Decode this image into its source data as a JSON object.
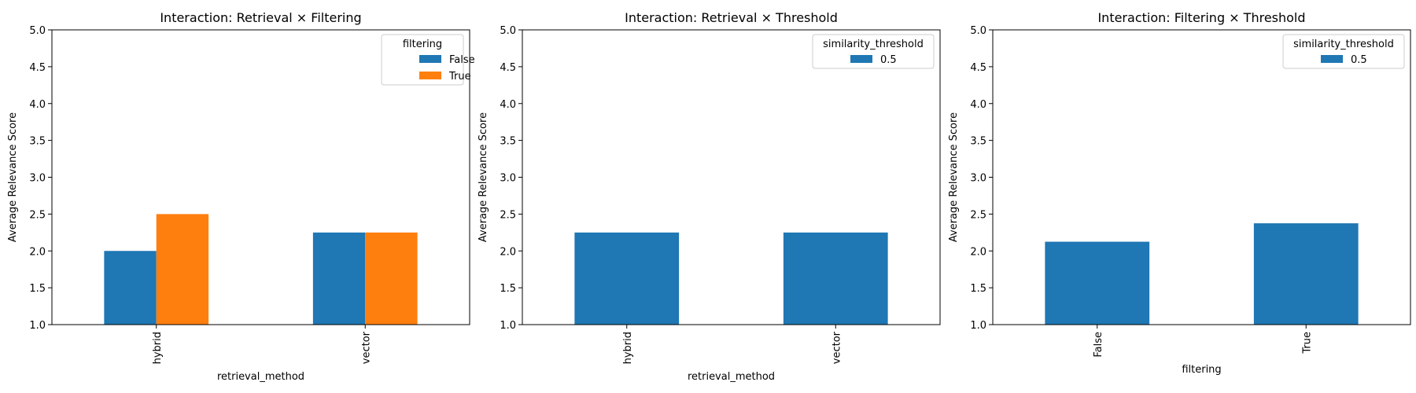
{
  "colors": {
    "series_blue": "#1f77b4",
    "series_orange": "#ff7f0e",
    "axis": "#000000",
    "legend_border": "#cccccc"
  },
  "chart_data": [
    {
      "type": "bar",
      "title": "Interaction: Retrieval × Filtering",
      "xlabel": "retrieval_method",
      "ylabel": "Average Relevance Score",
      "categories": [
        "hybrid",
        "vector"
      ],
      "series": [
        {
          "name": "False",
          "values": [
            2.0,
            2.25
          ],
          "color": "#1f77b4"
        },
        {
          "name": "True",
          "values": [
            2.5,
            2.25
          ],
          "color": "#ff7f0e"
        }
      ],
      "ylim": [
        1.0,
        5.0
      ],
      "yticks": [
        "1.0",
        "1.5",
        "2.0",
        "2.5",
        "3.0",
        "3.5",
        "4.0",
        "4.5",
        "5.0"
      ],
      "legend_title": "filtering",
      "legend_position": "top-right",
      "grid": false
    },
    {
      "type": "bar",
      "title": "Interaction: Retrieval × Threshold",
      "xlabel": "retrieval_method",
      "ylabel": "Average Relevance Score",
      "categories": [
        "hybrid",
        "vector"
      ],
      "series": [
        {
          "name": "0.5",
          "values": [
            2.25,
            2.25
          ],
          "color": "#1f77b4"
        }
      ],
      "ylim": [
        1.0,
        5.0
      ],
      "yticks": [
        "1.0",
        "1.5",
        "2.0",
        "2.5",
        "3.0",
        "3.5",
        "4.0",
        "4.5",
        "5.0"
      ],
      "legend_title": "similarity_threshold",
      "legend_position": "top-right",
      "grid": false
    },
    {
      "type": "bar",
      "title": "Interaction: Filtering × Threshold",
      "xlabel": "filtering",
      "ylabel": "Average Relevance Score",
      "categories": [
        "False",
        "True"
      ],
      "series": [
        {
          "name": "0.5",
          "values": [
            2.125,
            2.375
          ],
          "color": "#1f77b4"
        }
      ],
      "ylim": [
        1.0,
        5.0
      ],
      "yticks": [
        "1.0",
        "1.5",
        "2.0",
        "2.5",
        "3.0",
        "3.5",
        "4.0",
        "4.5",
        "5.0"
      ],
      "legend_title": "similarity_threshold",
      "legend_position": "top-right",
      "grid": false
    }
  ]
}
